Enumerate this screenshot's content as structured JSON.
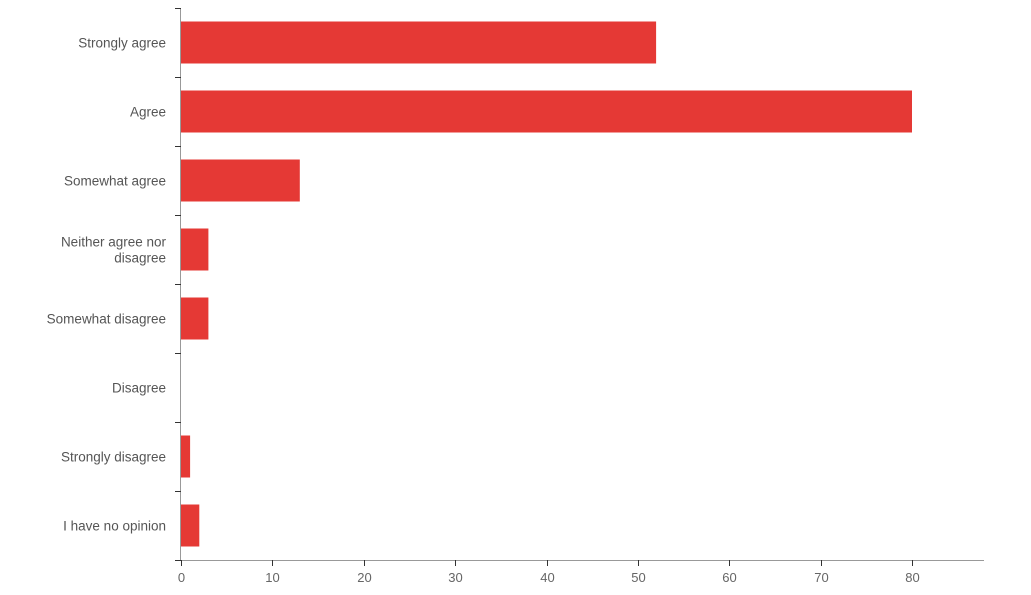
{
  "chart_data": {
    "type": "bar",
    "orientation": "horizontal",
    "title": "",
    "xlabel": "",
    "ylabel": "",
    "categories": [
      [
        "Strongly agree"
      ],
      [
        "Agree"
      ],
      [
        "Somewhat agree"
      ],
      [
        "Neither agree nor",
        "disagree"
      ],
      [
        "Somewhat disagree"
      ],
      [
        "Disagree"
      ],
      [
        "Strongly disagree"
      ],
      [
        "I have no opinion"
      ]
    ],
    "values": [
      52,
      80,
      13,
      3,
      3,
      0,
      1,
      2
    ],
    "xlim": [
      0,
      87.5
    ],
    "x_ticks": [
      "0",
      "10",
      "20",
      "30",
      "40",
      "50",
      "60",
      "70",
      "80"
    ],
    "x_tick_values": [
      0,
      10,
      20,
      30,
      40,
      50,
      60,
      70,
      80
    ],
    "bar_color": "#e53935",
    "grid": false,
    "legend": "none"
  }
}
